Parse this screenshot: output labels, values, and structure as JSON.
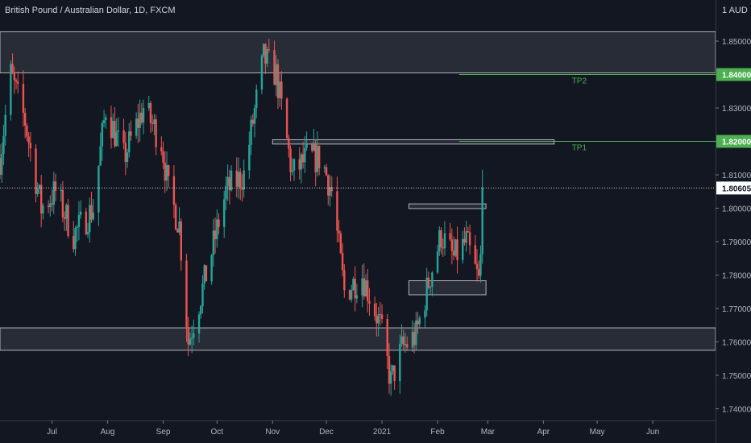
{
  "title": "British Pound / Australian Dollar, 1D, FXCM",
  "currency": "1 AUD",
  "colors": {
    "up": "#26a69a",
    "down": "#ef5350",
    "target": "#4caf50",
    "bg": "#131722",
    "text": "#b2b5be"
  },
  "chart_data": {
    "type": "candlestick",
    "ylim": [
      1.7365,
      1.857
    ],
    "xlim": [
      "2020-06-02",
      "2021-07-06"
    ],
    "y_ticks": [
      "1.74000",
      "1.75000",
      "1.76000",
      "1.77000",
      "1.78000",
      "1.79000",
      "1.80000",
      "1.81000",
      "1.82000",
      "1.83000",
      "1.84000",
      "1.85000"
    ],
    "x_ticks": [
      {
        "label": "Jul",
        "date": "2020-07-01"
      },
      {
        "label": "Aug",
        "date": "2020-08-01"
      },
      {
        "label": "Sep",
        "date": "2020-09-01"
      },
      {
        "label": "Oct",
        "date": "2020-10-01"
      },
      {
        "label": "Nov",
        "date": "2020-11-01"
      },
      {
        "label": "Dec",
        "date": "2020-12-01"
      },
      {
        "label": "2021",
        "date": "2021-01-01"
      },
      {
        "label": "Feb",
        "date": "2021-02-01"
      },
      {
        "label": "Mar",
        "date": "2021-03-01"
      },
      {
        "label": "Apr",
        "date": "2021-04-01"
      },
      {
        "label": "May",
        "date": "2021-05-01"
      },
      {
        "label": "Jun",
        "date": "2021-06-01"
      }
    ],
    "current_price": {
      "value": 1.80605,
      "label": "1.80605"
    },
    "zones": [
      {
        "from": "2020-06-02",
        "to": "2021-07-06",
        "low": 1.8405,
        "high": 1.8528
      },
      {
        "from": "2020-06-02",
        "to": "2021-07-06",
        "low": 1.7575,
        "high": 1.7642
      },
      {
        "from": "2020-11-01",
        "to": "2021-04-07",
        "low": 1.8192,
        "high": 1.8205
      },
      {
        "from": "2021-01-16",
        "to": "2021-02-28",
        "low": 1.7999,
        "high": 1.8013
      },
      {
        "from": "2021-01-16",
        "to": "2021-02-28",
        "low": 1.7741,
        "high": 1.7783
      }
    ],
    "targets": [
      {
        "name": "TP2",
        "value": 1.84,
        "label": "1.84000",
        "from": "2021-02-13"
      },
      {
        "name": "TP1",
        "value": 1.82,
        "label": "1.82000",
        "from": "2021-02-13"
      }
    ],
    "anchors": [
      {
        "date": "2020-06-02",
        "price": 1.815
      },
      {
        "date": "2020-06-08",
        "price": 1.84
      },
      {
        "date": "2020-06-16",
        "price": 1.826
      },
      {
        "date": "2020-06-25",
        "price": 1.8
      },
      {
        "date": "2020-07-03",
        "price": 1.805
      },
      {
        "date": "2020-07-13",
        "price": 1.792
      },
      {
        "date": "2020-07-24",
        "price": 1.8
      },
      {
        "date": "2020-07-31",
        "price": 1.83
      },
      {
        "date": "2020-08-10",
        "price": 1.815
      },
      {
        "date": "2020-08-21",
        "price": 1.83
      },
      {
        "date": "2020-08-31",
        "price": 1.82
      },
      {
        "date": "2020-09-04",
        "price": 1.805
      },
      {
        "date": "2020-09-10",
        "price": 1.795
      },
      {
        "date": "2020-09-15",
        "price": 1.76
      },
      {
        "date": "2020-09-25",
        "price": 1.78
      },
      {
        "date": "2020-10-06",
        "price": 1.805
      },
      {
        "date": "2020-10-16",
        "price": 1.81
      },
      {
        "date": "2020-10-27",
        "price": 1.845
      },
      {
        "date": "2020-11-03",
        "price": 1.84
      },
      {
        "date": "2020-11-12",
        "price": 1.81
      },
      {
        "date": "2020-11-20",
        "price": 1.815
      },
      {
        "date": "2020-11-28",
        "price": 1.815
      },
      {
        "date": "2020-12-04",
        "price": 1.805
      },
      {
        "date": "2020-12-11",
        "price": 1.775
      },
      {
        "date": "2020-12-21",
        "price": 1.78
      },
      {
        "date": "2020-12-31",
        "price": 1.765
      },
      {
        "date": "2021-01-06",
        "price": 1.748
      },
      {
        "date": "2021-01-12",
        "price": 1.758
      },
      {
        "date": "2021-01-20",
        "price": 1.762
      },
      {
        "date": "2021-01-28",
        "price": 1.78
      },
      {
        "date": "2021-02-03",
        "price": 1.792
      },
      {
        "date": "2021-02-10",
        "price": 1.785
      },
      {
        "date": "2021-02-17",
        "price": 1.79
      },
      {
        "date": "2021-02-24",
        "price": 1.778
      },
      {
        "date": "2021-02-28",
        "price": 1.806
      }
    ]
  }
}
